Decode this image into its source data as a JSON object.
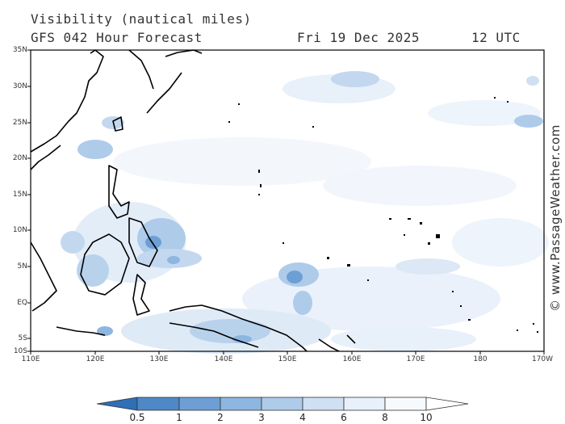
{
  "header": {
    "title": "Visibility (nautical miles)",
    "subtitle": "GFS 042 Hour Forecast",
    "date": "Fri 19 Dec 2025",
    "time": "12 UTC"
  },
  "credit": "© www.PassageWeather.com",
  "map": {
    "lat_labels": [
      "35N",
      "30N",
      "25N",
      "20N",
      "15N",
      "10N",
      "5N",
      "EQ",
      "5S",
      "10S"
    ],
    "lon_labels": [
      "110E",
      "120E",
      "130E",
      "140E",
      "150E",
      "160E",
      "170E",
      "180",
      "170W"
    ],
    "land_outline_color": "#000000",
    "background_color": "#ffffff"
  },
  "colorbar": {
    "labels": [
      "0.5",
      "1",
      "2",
      "3",
      "4",
      "6",
      "8",
      "10"
    ],
    "colors": [
      "#2f6fb5",
      "#4e88c7",
      "#6d9fd4",
      "#8db6e0",
      "#aecbea",
      "#cfe0f3",
      "#e8f0fa",
      "#ffffff"
    ]
  }
}
